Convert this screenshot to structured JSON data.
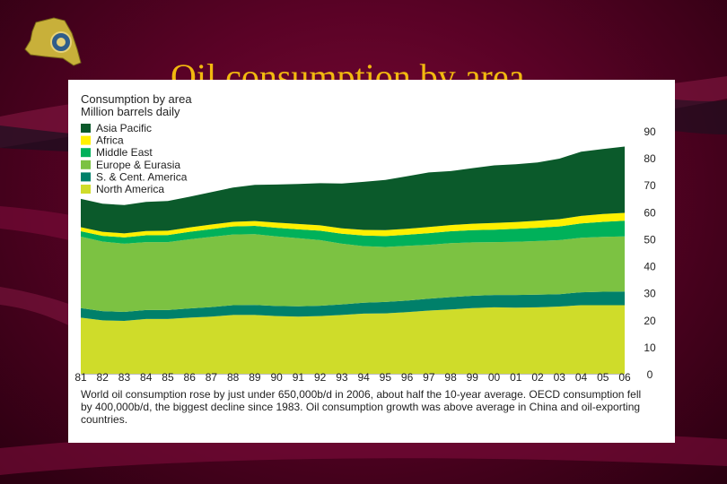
{
  "slide": {
    "title": "Oil consumption by area",
    "caption": "World oil consumption rose by just under 650,000b/d in 2006, about half the 10-year average. OECD consumption fell by 400,000b/d, the biggest decline since 1983. Oil consumption growth was above average in China and oil-exporting countries."
  },
  "colors": {
    "background": "#5a0226",
    "title": "#f2b90f",
    "North America": "#cfdc2a",
    "S. & Cent. America": "#00806a",
    "Europe & Eurasia": "#7cc242",
    "Middle East": "#00b15a",
    "Africa": "#fff000",
    "Asia Pacific": "#0b5a2b"
  },
  "chart_data": {
    "type": "area",
    "stacked": true,
    "title": "Consumption by area",
    "subtitle": "Million barrels daily",
    "x_tick_labels": [
      "81",
      "82",
      "83",
      "84",
      "85",
      "86",
      "87",
      "88",
      "89",
      "90",
      "91",
      "92",
      "93",
      "94",
      "95",
      "96",
      "97",
      "98",
      "99",
      "00",
      "01",
      "02",
      "03",
      "04",
      "05",
      "06"
    ],
    "ylim": [
      0,
      90
    ],
    "y_ticks": [
      0,
      10,
      20,
      30,
      40,
      50,
      60,
      70,
      80,
      90
    ],
    "y_axis_side": "right",
    "legend_position": "top-left",
    "series": [
      {
        "name": "North America",
        "values": [
          20.8,
          19.8,
          19.6,
          20.3,
          20.3,
          20.8,
          21.2,
          21.8,
          21.8,
          21.4,
          21.2,
          21.4,
          21.8,
          22.3,
          22.4,
          22.8,
          23.4,
          23.8,
          24.3,
          24.6,
          24.5,
          24.6,
          24.9,
          25.4,
          25.4,
          25.4
        ]
      },
      {
        "name": "S. & Cent. America",
        "values": [
          3.5,
          3.4,
          3.3,
          3.3,
          3.3,
          3.4,
          3.5,
          3.6,
          3.7,
          3.7,
          3.8,
          3.8,
          3.9,
          4.0,
          4.2,
          4.3,
          4.4,
          4.6,
          4.6,
          4.6,
          4.7,
          4.7,
          4.6,
          4.8,
          5.0,
          5.1
        ]
      },
      {
        "name": "Europe & Eurasia",
        "values": [
          26.5,
          25.8,
          25.3,
          25.2,
          25.2,
          25.6,
          26.0,
          26.2,
          26.2,
          25.8,
          25.2,
          24.3,
          22.5,
          21.0,
          20.4,
          20.3,
          20.0,
          20.0,
          19.8,
          19.6,
          19.7,
          19.9,
          20.0,
          20.2,
          20.3,
          20.4
        ]
      },
      {
        "name": "Middle East",
        "values": [
          2.0,
          2.1,
          2.3,
          2.5,
          2.6,
          2.8,
          2.9,
          3.0,
          3.1,
          3.2,
          3.3,
          3.5,
          3.7,
          3.9,
          4.0,
          4.1,
          4.3,
          4.4,
          4.5,
          4.6,
          4.8,
          4.9,
          5.1,
          5.3,
          5.6,
          5.8
        ]
      },
      {
        "name": "Africa",
        "values": [
          1.5,
          1.5,
          1.5,
          1.6,
          1.6,
          1.6,
          1.7,
          1.7,
          1.8,
          1.9,
          2.0,
          2.0,
          2.0,
          2.1,
          2.2,
          2.2,
          2.3,
          2.3,
          2.4,
          2.5,
          2.5,
          2.6,
          2.7,
          2.8,
          2.9,
          2.9
        ]
      },
      {
        "name": "Asia Pacific",
        "values": [
          10.5,
          10.4,
          10.5,
          10.8,
          11.0,
          11.4,
          12.0,
          12.7,
          13.4,
          14.1,
          14.8,
          15.6,
          16.6,
          17.8,
          18.6,
          19.5,
          20.2,
          20.0,
          20.6,
          21.3,
          21.4,
          21.6,
          22.4,
          23.8,
          24.1,
          24.6
        ]
      }
    ]
  }
}
